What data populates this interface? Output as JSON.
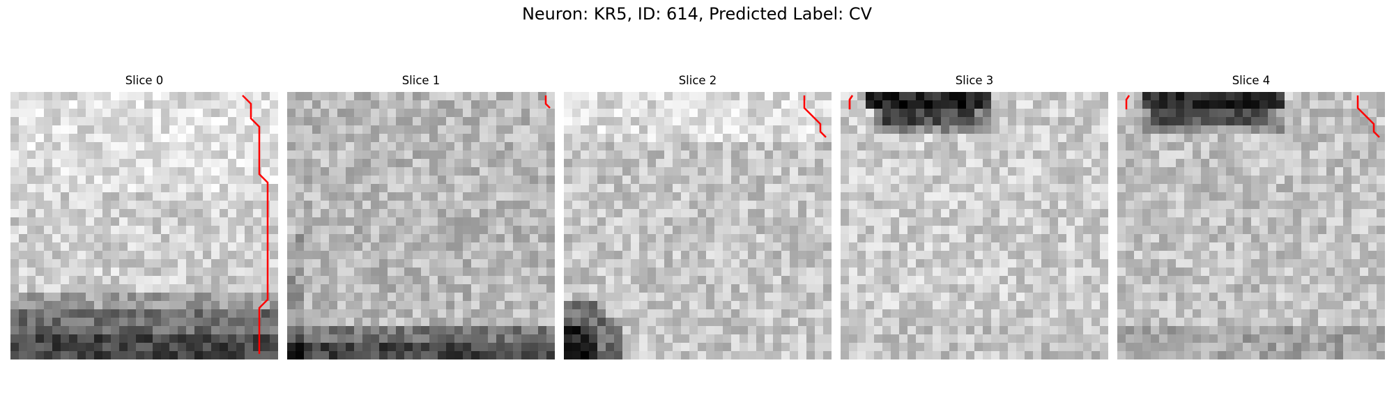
{
  "title": "Neuron: KR5, ID: 614, Predicted Label: CV",
  "colors": {
    "trace": "#ff0000"
  },
  "slices": [
    {
      "label": "Slice 0",
      "dark_region": "bottom"
    },
    {
      "label": "Slice 1",
      "dark_region": "bottom"
    },
    {
      "label": "Slice 2",
      "dark_region": "bottom-left-corner"
    },
    {
      "label": "Slice 3",
      "dark_region": "top"
    },
    {
      "label": "Slice 4",
      "dark_region": "top"
    }
  ]
}
